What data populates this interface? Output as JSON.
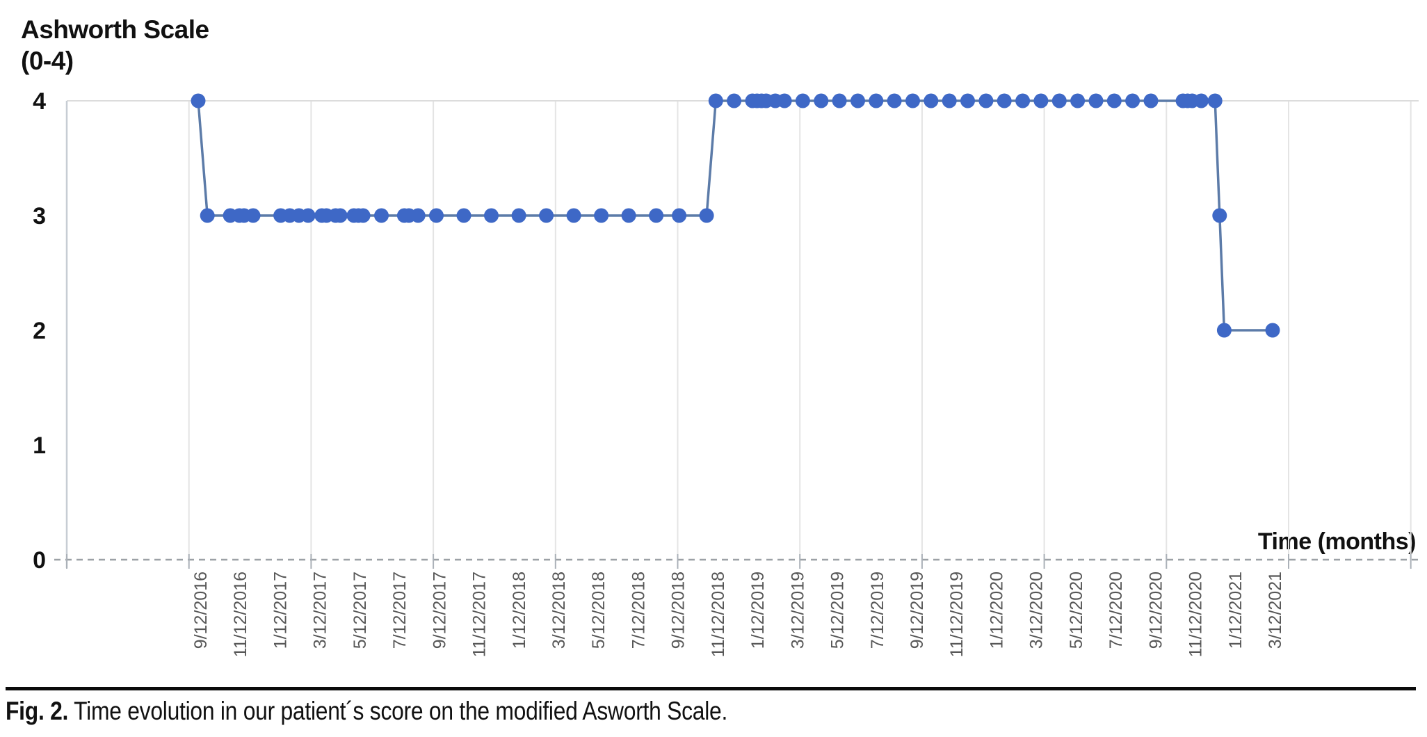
{
  "chart": {
    "title_line1": "Ashworth Scale",
    "title_line2": "(0-4)",
    "x_axis_label": "Time (months)",
    "colors": {
      "marker": "#3E68C6",
      "line": "#5C7BA8",
      "gridline": "#E4E4E4",
      "plot_border": "#DCDCDC",
      "y_axis": "#C7CDD4",
      "x_axis_dash": "#9CA1A6",
      "tick": "#ABB1B8",
      "x_label_text": "#575757",
      "y_label_text": "#111111"
    }
  },
  "chart_data": {
    "type": "line",
    "title": "Ashworth Scale (0-4)",
    "xlabel": "Time (months)",
    "ylabel": "Ashworth Scale (0-4)",
    "ylim": [
      0,
      4
    ],
    "y_ticks": [
      4,
      3,
      2,
      1,
      0
    ],
    "grid": "vertical-only",
    "legend": "none",
    "x_tick_labels": [
      "9/12/2016",
      "11/12/2016",
      "1/12/2017",
      "3/12/2017",
      "5/12/2017",
      "7/12/2017",
      "9/12/2017",
      "11/12/2017",
      "1/12/2018",
      "3/12/2018",
      "5/12/2018",
      "7/12/2018",
      "9/12/2018",
      "11/12/2018",
      "1/12/2019",
      "3/12/2019",
      "5/12/2019",
      "7/12/2019",
      "9/12/2019",
      "11/12/2019",
      "1/12/2020",
      "3/12/2020",
      "5/12/2020",
      "7/12/2020",
      "9/12/2020",
      "11/12/2020",
      "1/12/2021",
      "3/12/2021"
    ],
    "points": [
      {
        "date": "9/12/2016",
        "value": 4
      },
      {
        "date": "9/26/2016",
        "value": 3
      },
      {
        "date": "10/31/2016",
        "value": 3
      },
      {
        "date": "11/14/2016",
        "value": 3
      },
      {
        "date": "11/21/2016",
        "value": 3
      },
      {
        "date": "12/5/2016",
        "value": 3
      },
      {
        "date": "1/16/2017",
        "value": 3
      },
      {
        "date": "1/30/2017",
        "value": 3
      },
      {
        "date": "2/13/2017",
        "value": 3
      },
      {
        "date": "2/27/2017",
        "value": 3
      },
      {
        "date": "3/20/2017",
        "value": 3
      },
      {
        "date": "3/27/2017",
        "value": 3
      },
      {
        "date": "4/10/2017",
        "value": 3
      },
      {
        "date": "4/17/2017",
        "value": 3
      },
      {
        "date": "5/8/2017",
        "value": 3
      },
      {
        "date": "5/15/2017",
        "value": 3
      },
      {
        "date": "5/22/2017",
        "value": 3
      },
      {
        "date": "6/19/2017",
        "value": 3
      },
      {
        "date": "7/24/2017",
        "value": 3
      },
      {
        "date": "7/31/2017",
        "value": 3
      },
      {
        "date": "8/14/2017",
        "value": 3
      },
      {
        "date": "9/11/2017",
        "value": 3
      },
      {
        "date": "10/23/2017",
        "value": 3
      },
      {
        "date": "12/4/2017",
        "value": 3
      },
      {
        "date": "1/15/2018",
        "value": 3
      },
      {
        "date": "2/26/2018",
        "value": 3
      },
      {
        "date": "4/9/2018",
        "value": 3
      },
      {
        "date": "5/21/2018",
        "value": 3
      },
      {
        "date": "7/2/2018",
        "value": 3
      },
      {
        "date": "8/13/2018",
        "value": 3
      },
      {
        "date": "9/17/2018",
        "value": 3
      },
      {
        "date": "10/29/2018",
        "value": 3
      },
      {
        "date": "11/12/2018",
        "value": 4
      },
      {
        "date": "12/10/2018",
        "value": 4
      },
      {
        "date": "1/7/2019",
        "value": 4
      },
      {
        "date": "1/14/2019",
        "value": 4
      },
      {
        "date": "1/21/2019",
        "value": 4
      },
      {
        "date": "1/28/2019",
        "value": 4
      },
      {
        "date": "2/11/2019",
        "value": 4
      },
      {
        "date": "2/25/2019",
        "value": 4
      },
      {
        "date": "3/25/2019",
        "value": 4
      },
      {
        "date": "4/22/2019",
        "value": 4
      },
      {
        "date": "5/20/2019",
        "value": 4
      },
      {
        "date": "6/17/2019",
        "value": 4
      },
      {
        "date": "7/15/2019",
        "value": 4
      },
      {
        "date": "8/12/2019",
        "value": 4
      },
      {
        "date": "9/9/2019",
        "value": 4
      },
      {
        "date": "10/7/2019",
        "value": 4
      },
      {
        "date": "11/4/2019",
        "value": 4
      },
      {
        "date": "12/2/2019",
        "value": 4
      },
      {
        "date": "12/30/2019",
        "value": 4
      },
      {
        "date": "1/27/2020",
        "value": 4
      },
      {
        "date": "2/24/2020",
        "value": 4
      },
      {
        "date": "3/23/2020",
        "value": 4
      },
      {
        "date": "4/20/2020",
        "value": 4
      },
      {
        "date": "5/18/2020",
        "value": 4
      },
      {
        "date": "6/15/2020",
        "value": 4
      },
      {
        "date": "7/13/2020",
        "value": 4
      },
      {
        "date": "8/10/2020",
        "value": 4
      },
      {
        "date": "9/7/2020",
        "value": 4
      },
      {
        "date": "10/26/2020",
        "value": 4
      },
      {
        "date": "11/2/2020",
        "value": 4
      },
      {
        "date": "11/9/2020",
        "value": 4
      },
      {
        "date": "11/23/2020",
        "value": 4
      },
      {
        "date": "12/14/2020",
        "value": 4
      },
      {
        "date": "12/21/2020",
        "value": 3
      },
      {
        "date": "12/28/2020",
        "value": 2
      },
      {
        "date": "3/12/2021",
        "value": 2
      }
    ]
  },
  "caption": {
    "label": "Fig. 2.",
    "text": " Time evolution in our patient´s score on the modified Asworth Scale."
  }
}
